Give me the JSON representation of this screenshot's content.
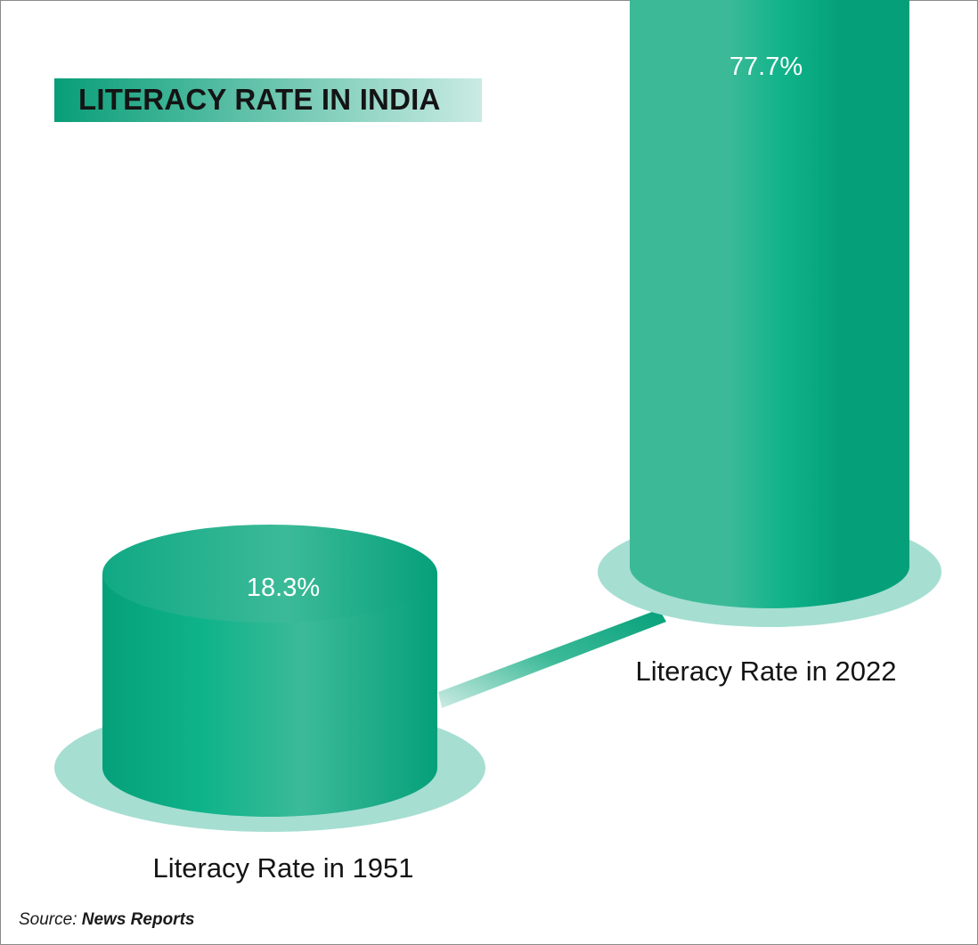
{
  "chart_data": {
    "type": "bar",
    "title": "LITERACY RATE IN INDIA",
    "categories": [
      "Literacy Rate in 1951",
      "Literacy Rate in 2022"
    ],
    "values": [
      18.3,
      77.7
    ],
    "value_labels": [
      "18.3%",
      "77.7%"
    ],
    "unit": "%",
    "style": "3d-cylinder",
    "colors": {
      "bar_dark": "#05a07a",
      "bar_mid": "#0fb38a",
      "bar_light": "#3cba98",
      "base": "#a6ded2",
      "title_gradient_start": "#089e78",
      "title_gradient_end": "#c9ebe3"
    }
  },
  "source": {
    "label": "Source:",
    "value": "News Reports"
  }
}
